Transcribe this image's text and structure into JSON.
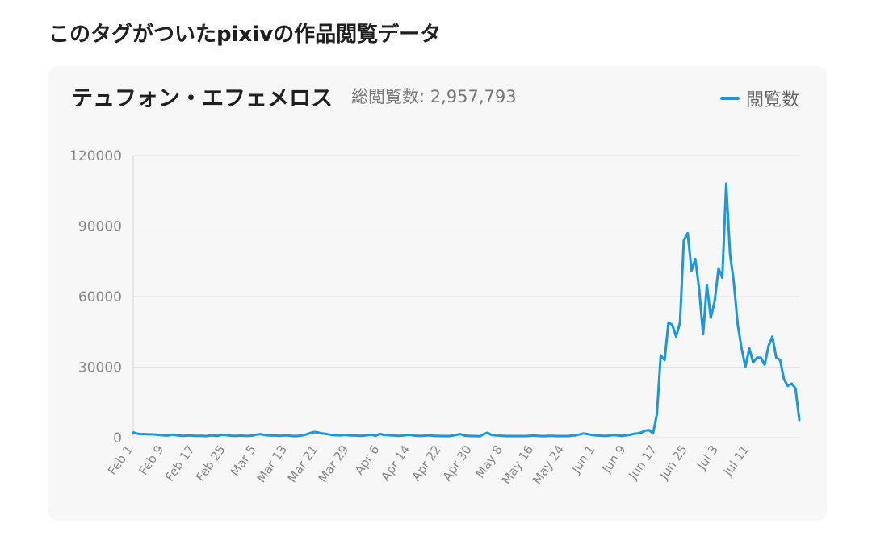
{
  "section_title": "このタグがついたpixivの作品閲覧データ",
  "chart_data": {
    "type": "line",
    "title": "テュフォン・エフェメロス",
    "subtitle": "総閲覧数: 2,957,793",
    "legend_position": "top-right",
    "grid": true,
    "ylim": [
      0,
      120000
    ],
    "y_ticks": [
      0,
      30000,
      60000,
      90000,
      120000
    ],
    "x_tick_labels": [
      "Feb 1",
      "Feb 9",
      "Feb 17",
      "Feb 25",
      "Mar 5",
      "Mar 13",
      "Mar 21",
      "Mar 29",
      "Apr 6",
      "Apr 14",
      "Apr 22",
      "Apr 30",
      "May 8",
      "May 16",
      "May 24",
      "Jun 1",
      "Jun 9",
      "Jun 17",
      "Jun 25",
      "Jul 3",
      "Jul 11"
    ],
    "series": [
      {
        "name": "閲覧数",
        "color": "#1c96dd",
        "values": [
          2200,
          1700,
          1500,
          1500,
          1400,
          1400,
          1300,
          1100,
          1000,
          900,
          1300,
          1100,
          900,
          800,
          900,
          900,
          800,
          800,
          800,
          700,
          900,
          900,
          800,
          1200,
          1100,
          900,
          800,
          800,
          900,
          800,
          800,
          900,
          1300,
          1500,
          1200,
          1000,
          900,
          900,
          800,
          900,
          1000,
          800,
          700,
          800,
          1000,
          1400,
          2000,
          2400,
          2200,
          1800,
          1600,
          1300,
          1100,
          1000,
          1000,
          1200,
          1000,
          900,
          900,
          800,
          900,
          1100,
          1200,
          800,
          1600,
          1200,
          1100,
          1000,
          900,
          800,
          900,
          1100,
          1200,
          900,
          800,
          800,
          900,
          1000,
          800,
          800,
          700,
          700,
          700,
          900,
          1200,
          1500,
          900,
          800,
          700,
          700,
          600,
          1500,
          2100,
          1200,
          1000,
          900,
          800,
          700,
          700,
          700,
          700,
          700,
          700,
          800,
          900,
          800,
          700,
          700,
          800,
          800,
          700,
          700,
          700,
          700,
          900,
          1000,
          1400,
          1800,
          1500,
          1200,
          1000,
          900,
          800,
          800,
          1000,
          1100,
          900,
          800,
          1000,
          1200,
          1600,
          1800,
          2200,
          3000,
          3200,
          1800,
          10000,
          35000,
          33000,
          49000,
          48000,
          43000,
          49000,
          84000,
          87000,
          71000,
          76000,
          63000,
          44000,
          65000,
          51000,
          58000,
          72000,
          68000,
          108000,
          78000,
          66000,
          48000,
          38000,
          30000,
          38000,
          32000,
          34000,
          34000,
          31000,
          39000,
          43000,
          34000,
          33000,
          25000,
          22000,
          23000,
          21000,
          7500
        ]
      }
    ]
  }
}
